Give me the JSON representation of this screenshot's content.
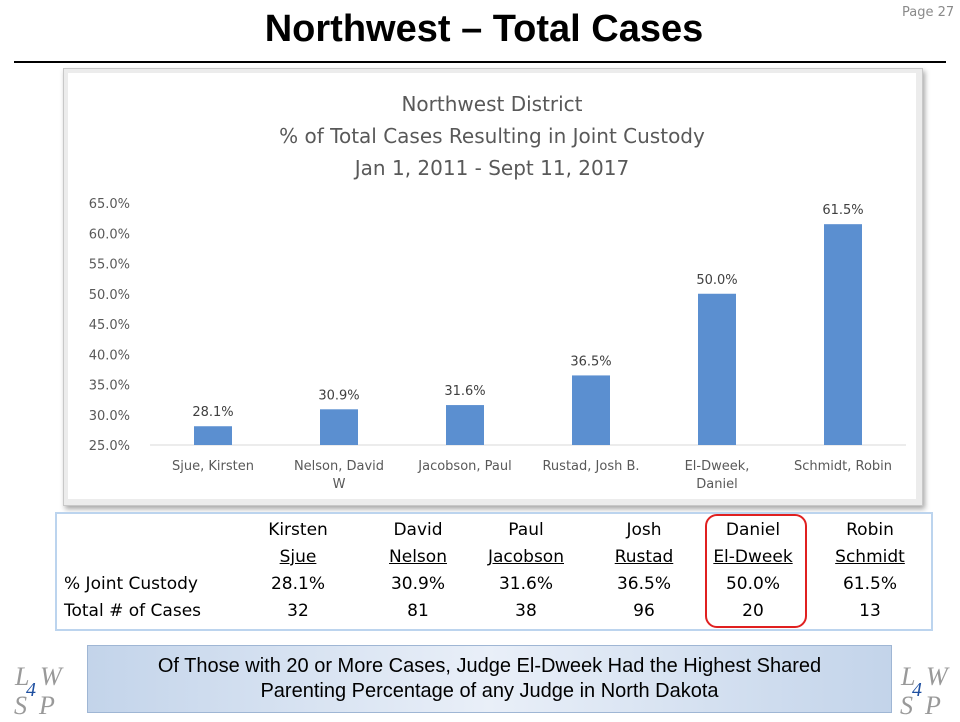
{
  "header": {
    "title": "Northwest – Total Cases",
    "page_number": "Page 27"
  },
  "chart_data": {
    "type": "bar",
    "title": [
      "Northwest District",
      "% of Total Cases Resulting in Joint Custody",
      "Jan 1, 2011 - Sept 11, 2017"
    ],
    "categories": [
      [
        "Sjue, Kirsten"
      ],
      [
        "Nelson, David",
        "W"
      ],
      [
        "Jacobson, Paul"
      ],
      [
        "Rustad, Josh B."
      ],
      [
        "El-Dweek,",
        "Daniel"
      ],
      [
        "Schmidt, Robin"
      ]
    ],
    "values": [
      28.1,
      30.9,
      31.6,
      36.5,
      50.0,
      61.5
    ],
    "data_labels": [
      "28.1%",
      "30.9%",
      "31.6%",
      "36.5%",
      "50.0%",
      "61.5%"
    ],
    "yticks": [
      "25.0%",
      "30.0%",
      "35.0%",
      "40.0%",
      "45.0%",
      "50.0%",
      "55.0%",
      "60.0%",
      "65.0%"
    ],
    "ylim": [
      25,
      65
    ],
    "xlabel": "",
    "ylabel": "",
    "grid": false,
    "bar_color": "#5b8fd0"
  },
  "table": {
    "columns": [
      {
        "first": "Kirsten",
        "last": "Sjue"
      },
      {
        "first": "David",
        "last": "Nelson"
      },
      {
        "first": "Paul",
        "last": "Jacobson"
      },
      {
        "first": "Josh",
        "last": "Rustad"
      },
      {
        "first": "Daniel",
        "last": "El-Dweek"
      },
      {
        "first": "Robin",
        "last": "Schmidt"
      }
    ],
    "rows": [
      {
        "label": "% Joint Custody",
        "values": [
          "28.1%",
          "30.9%",
          "31.6%",
          "36.5%",
          "50.0%",
          "61.5%"
        ]
      },
      {
        "label": "Total # of Cases",
        "values": [
          "32",
          "81",
          "38",
          "96",
          "20",
          "13"
        ]
      }
    ],
    "highlight_color": "#e02020"
  },
  "banner": {
    "line1": "Of Those with 20 or More Cases, Judge El-Dweek Had the Highest Shared",
    "line2": "Parenting Percentage of any Judge in North Dakota"
  },
  "logo": {
    "letters": [
      "L",
      "W",
      "S",
      "P"
    ],
    "number": "4"
  }
}
